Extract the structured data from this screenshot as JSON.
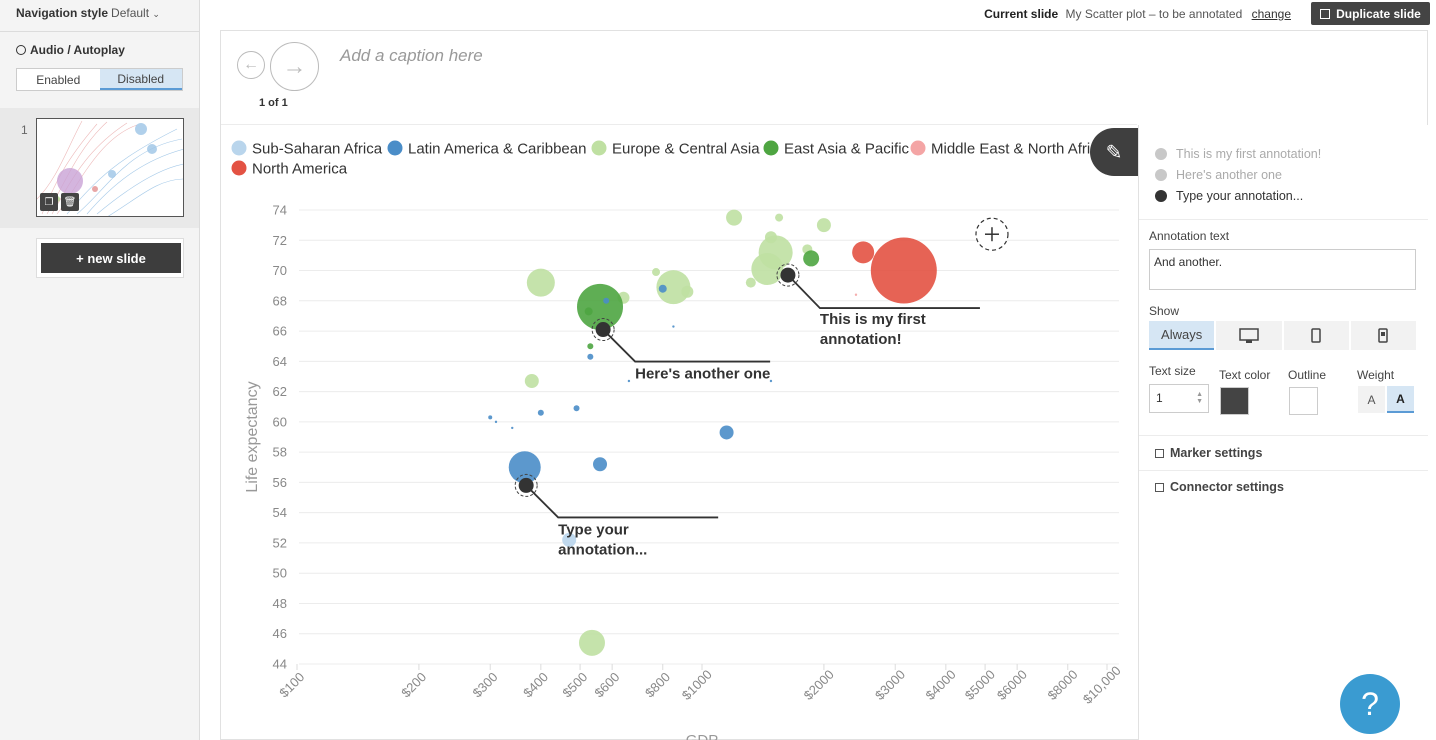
{
  "navigation_style": {
    "label": "Navigation style",
    "value": "Default"
  },
  "audio": {
    "title": "Audio / Autoplay",
    "options": [
      "Enabled",
      "Disabled"
    ],
    "selected": "Disabled"
  },
  "slides": {
    "items": [
      {
        "number": "1"
      }
    ],
    "new_slide_label": "+ new slide"
  },
  "topbar": {
    "current_slide_label": "Current slide",
    "current_slide_title": "My Scatter plot – to be annotated",
    "change_label": "change",
    "duplicate_label": "Duplicate slide"
  },
  "canvas": {
    "caption_placeholder": "Add a caption here",
    "counter": "1 of 1"
  },
  "annotation_panel": {
    "items": [
      {
        "label": "This is my first annotation!",
        "color": "#bdbdbd"
      },
      {
        "label": "Here's another one",
        "color": "#bdbdbd"
      },
      {
        "label": "Type your annotation...",
        "color": "#333333"
      }
    ],
    "annotation_text_label": "Annotation text",
    "annotation_text_value": "And another.",
    "show_label": "Show",
    "show_options": [
      "Always",
      "desktop-icon",
      "mobile-icon",
      "mobile-alt-icon"
    ],
    "show_selected": "Always",
    "text_size_label": "Text size",
    "text_size_value": "1",
    "text_color_label": "Text color",
    "text_color": "#444444",
    "outline_label": "Outline",
    "outline_color": "#ffffff",
    "weight_label": "Weight",
    "weight_options": [
      "A",
      "A"
    ],
    "weight_selected": 1,
    "marker_settings_label": "Marker settings",
    "connector_settings_label": "Connector settings"
  },
  "help": {
    "label": "?"
  },
  "chart_data": {
    "type": "scatter",
    "title": "",
    "xlabel": "GDP",
    "ylabel": "Life expectancy",
    "x_scale": "log",
    "x_ticks": [
      100,
      200,
      300,
      400,
      500,
      600,
      800,
      1000,
      2000,
      3000,
      4000,
      5000,
      6000,
      8000,
      10000
    ],
    "x_tick_labels": [
      "$100",
      "$200",
      "$300",
      "$400",
      "$500",
      "$600",
      "$800",
      "$1000",
      "$2000",
      "$3000",
      "$4000",
      "$5000",
      "$6000",
      "$8000",
      "$10,000"
    ],
    "ylim": [
      44,
      74
    ],
    "y_ticks": [
      44,
      46,
      48,
      50,
      52,
      54,
      56,
      58,
      60,
      62,
      64,
      66,
      68,
      70,
      72,
      74
    ],
    "grid": "horizontal",
    "legend_placement": "top-left",
    "legend": [
      {
        "name": "Sub-Saharan Africa",
        "color": "#b9d5ec"
      },
      {
        "name": "Latin America & Caribbean",
        "color": "#4a8dc8"
      },
      {
        "name": "Europe & Central Asia",
        "color": "#bfe0a2"
      },
      {
        "name": "East Asia & Pacific",
        "color": "#4ea541"
      },
      {
        "name": "Middle East & North Africa",
        "color": "#f4a5a5"
      },
      {
        "name": "North America",
        "color": "#e35243"
      }
    ],
    "points": [
      {
        "x": 1200,
        "y": 73.5,
        "r": 8,
        "color": "#bfe0a2"
      },
      {
        "x": 1550,
        "y": 73.5,
        "r": 4,
        "color": "#bfe0a2"
      },
      {
        "x": 2000,
        "y": 73,
        "r": 7,
        "color": "#bfe0a2"
      },
      {
        "x": 1520,
        "y": 71.2,
        "r": 17,
        "color": "#bfe0a2"
      },
      {
        "x": 1450,
        "y": 70.1,
        "r": 16,
        "color": "#bfe0a2"
      },
      {
        "x": 1480,
        "y": 72.2,
        "r": 6,
        "color": "#bfe0a2"
      },
      {
        "x": 1820,
        "y": 71.4,
        "r": 5,
        "color": "#bfe0a2"
      },
      {
        "x": 1320,
        "y": 69.2,
        "r": 5,
        "color": "#bfe0a2"
      },
      {
        "x": 1860,
        "y": 70.8,
        "r": 8,
        "color": "#4ea541"
      },
      {
        "x": 2500,
        "y": 71.2,
        "r": 11,
        "color": "#e35243"
      },
      {
        "x": 3150,
        "y": 70.0,
        "r": 33,
        "color": "#e35243"
      },
      {
        "x": 2400,
        "y": 68.4,
        "r": 1,
        "color": "#f4a5a5"
      },
      {
        "x": 770,
        "y": 69.9,
        "r": 4,
        "color": "#bfe0a2"
      },
      {
        "x": 850,
        "y": 68.9,
        "r": 17,
        "color": "#bfe0a2"
      },
      {
        "x": 920,
        "y": 68.6,
        "r": 6,
        "color": "#bfe0a2"
      },
      {
        "x": 640,
        "y": 68.2,
        "r": 6,
        "color": "#bfe0a2"
      },
      {
        "x": 400,
        "y": 69.2,
        "r": 14,
        "color": "#bfe0a2"
      },
      {
        "x": 560,
        "y": 67.6,
        "r": 23,
        "color": "#4ea541"
      },
      {
        "x": 525,
        "y": 67.3,
        "r": 4,
        "color": "#4ea541"
      },
      {
        "x": 530,
        "y": 65.0,
        "r": 3,
        "color": "#4ea541"
      },
      {
        "x": 580,
        "y": 68.0,
        "r": 3,
        "color": "#4a8dc8"
      },
      {
        "x": 800,
        "y": 68.8,
        "r": 4,
        "color": "#4a8dc8"
      },
      {
        "x": 850,
        "y": 66.3,
        "r": 1,
        "color": "#4a8dc8"
      },
      {
        "x": 530,
        "y": 64.3,
        "r": 3,
        "color": "#4a8dc8"
      },
      {
        "x": 380,
        "y": 62.7,
        "r": 7,
        "color": "#bfe0a2"
      },
      {
        "x": 660,
        "y": 62.7,
        "r": 1,
        "color": "#4a8dc8"
      },
      {
        "x": 1480,
        "y": 62.7,
        "r": 1,
        "color": "#4a8dc8"
      },
      {
        "x": 300,
        "y": 60.3,
        "r": 2,
        "color": "#4a8dc8"
      },
      {
        "x": 310,
        "y": 60.0,
        "r": 1,
        "color": "#4a8dc8"
      },
      {
        "x": 340,
        "y": 59.6,
        "r": 1,
        "color": "#4a8dc8"
      },
      {
        "x": 400,
        "y": 60.6,
        "r": 3,
        "color": "#4a8dc8"
      },
      {
        "x": 490,
        "y": 60.9,
        "r": 3,
        "color": "#4a8dc8"
      },
      {
        "x": 1150,
        "y": 59.3,
        "r": 7,
        "color": "#4a8dc8"
      },
      {
        "x": 365,
        "y": 57.0,
        "r": 16,
        "color": "#4a8dc8"
      },
      {
        "x": 560,
        "y": 57.2,
        "r": 7,
        "color": "#4a8dc8"
      },
      {
        "x": 470,
        "y": 52.2,
        "r": 7,
        "color": "#b9d5ec"
      },
      {
        "x": 535,
        "y": 45.4,
        "r": 13,
        "color": "#bfe0a2"
      }
    ],
    "annotations": [
      {
        "label": "This is my first annotation!",
        "x": 1630,
        "y": 69.7
      },
      {
        "label": "Here's another one",
        "x": 570,
        "y": 66.1
      },
      {
        "label": "Type your annotation...",
        "x": 368,
        "y": 55.8
      }
    ],
    "add_marker": {
      "x": 5200,
      "y": 72.4
    }
  }
}
